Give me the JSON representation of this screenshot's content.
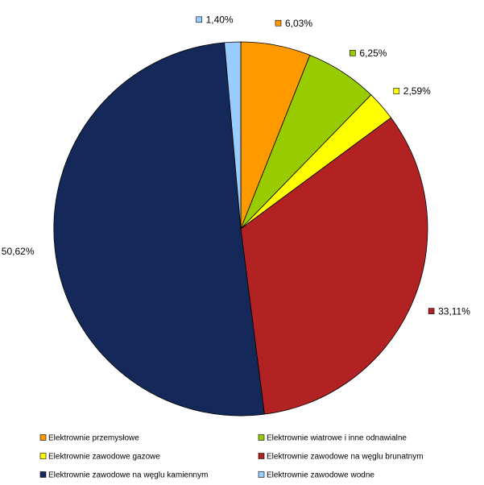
{
  "chart_data": {
    "type": "pie",
    "title": "",
    "start_angle_deg": 0,
    "direction": "clockwise",
    "slices": [
      {
        "name": "Elektrownie przemysłowe",
        "value": 6.03,
        "label": "6,03%",
        "color": "#ff9900"
      },
      {
        "name": "Elektrownie wiatrowe i inne odnawialne",
        "value": 6.25,
        "label": "6,25%",
        "color": "#99cc00"
      },
      {
        "name": "Elektrownie zawodowe gazowe",
        "value": 2.59,
        "label": "2,59%",
        "color": "#ffff00"
      },
      {
        "name": "Elektrownie zawodowe na węglu brunatnym",
        "value": 33.11,
        "label": "33,11%",
        "color": "#b22222"
      },
      {
        "name": "Elektrownie zawodowe na węglu kamiennym",
        "value": 50.62,
        "label": "50,62%",
        "color": "#14295a"
      },
      {
        "name": "Elektrownie zawodowe wodne",
        "value": 1.4,
        "label": "1,40%",
        "color": "#99ccff"
      }
    ],
    "legend": {
      "placement": "bottom",
      "columns": 2,
      "order": [
        0,
        1,
        2,
        3,
        4,
        5
      ]
    }
  }
}
